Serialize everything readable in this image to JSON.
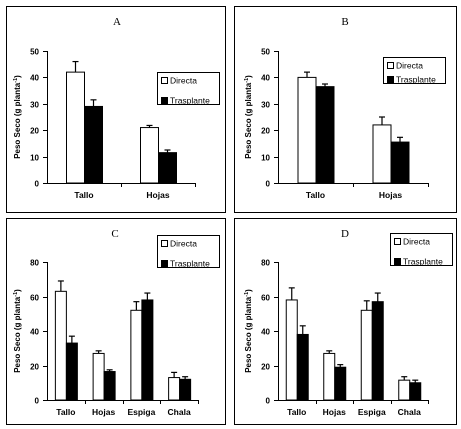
{
  "colors": {
    "directa": "#ffffff",
    "trasplante": "#000000",
    "stroke": "#000000"
  },
  "chart_data": [
    {
      "type": "bar",
      "panel": "A",
      "ylabel": "Peso Seco (g planta",
      "ylabel_sup": "-1",
      "ylabel_close": ")",
      "ylim": [
        0,
        50
      ],
      "yticks": [
        "0",
        "10",
        "20",
        "30",
        "40",
        "50"
      ],
      "categories": [
        "Tallo",
        "Hojas"
      ],
      "series": [
        {
          "name": "Directa",
          "values": [
            42,
            21
          ],
          "errors": [
            4,
            0.8
          ]
        },
        {
          "name": "Trasplante",
          "values": [
            29,
            11.5
          ],
          "errors": [
            2.5,
            1
          ]
        }
      ],
      "legend": "right"
    },
    {
      "type": "bar",
      "panel": "B",
      "ylabel": "Peso Seco (g planta",
      "ylabel_sup": "-1",
      "ylabel_close": ")",
      "ylim": [
        0,
        50
      ],
      "yticks": [
        "0",
        "10",
        "20",
        "30",
        "40",
        "50"
      ],
      "categories": [
        "Tallo",
        "Hojas"
      ],
      "series": [
        {
          "name": "Directa",
          "values": [
            40,
            22
          ],
          "errors": [
            2,
            3
          ]
        },
        {
          "name": "Trasplante",
          "values": [
            36.5,
            15.5
          ],
          "errors": [
            1,
            1.8
          ]
        }
      ],
      "legend": "top-right"
    },
    {
      "type": "bar",
      "panel": "C",
      "ylabel": "Peso Seco (g planta",
      "ylabel_sup": "-1",
      "ylabel_close": ")",
      "ylim": [
        0,
        80
      ],
      "yticks": [
        "0",
        "20",
        "40",
        "60",
        "80"
      ],
      "categories": [
        "Tallo",
        "Hojas",
        "Espiga",
        "Chala"
      ],
      "series": [
        {
          "name": "Directa",
          "values": [
            63,
            27,
            52,
            13
          ],
          "errors": [
            6,
            1.5,
            5,
            3
          ]
        },
        {
          "name": "Trasplante",
          "values": [
            33,
            16.5,
            58,
            12
          ],
          "errors": [
            4,
            1,
            4,
            1.5
          ]
        }
      ],
      "legend": "top-right"
    },
    {
      "type": "bar",
      "panel": "D",
      "ylabel": "Peso Seco (g planta",
      "ylabel_sup": "-1",
      "ylabel_close": ")",
      "ylim": [
        0,
        80
      ],
      "yticks": [
        "0",
        "20",
        "40",
        "60",
        "80"
      ],
      "categories": [
        "Tallo",
        "Hojas",
        "Espiga",
        "Chala"
      ],
      "series": [
        {
          "name": "Directa",
          "values": [
            58,
            27,
            52,
            11.5
          ],
          "errors": [
            7,
            1.5,
            5.5,
            2
          ]
        },
        {
          "name": "Trasplante",
          "values": [
            38,
            19,
            57,
            10
          ],
          "errors": [
            5,
            1.5,
            5,
            1.5
          ]
        }
      ],
      "legend": "top-right"
    }
  ]
}
